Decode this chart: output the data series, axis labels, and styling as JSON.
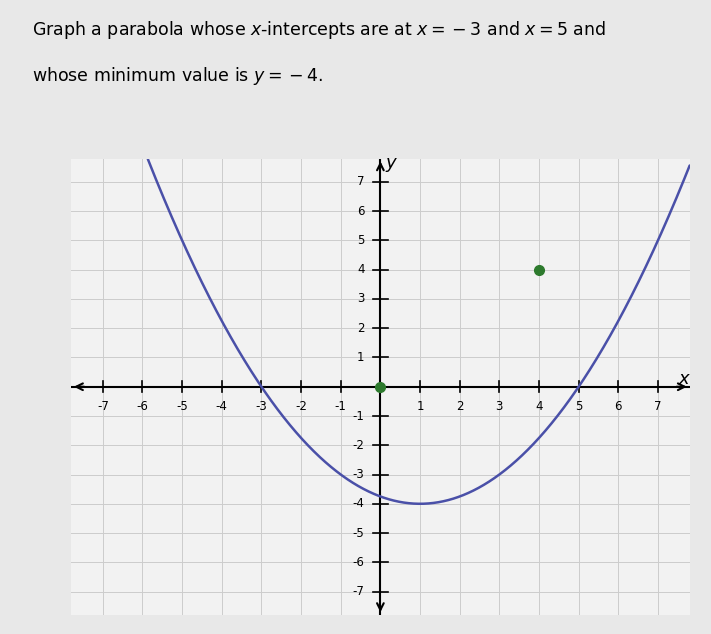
{
  "x_intercept_1": -3,
  "x_intercept_2": 5,
  "vertex_x": 1,
  "vertex_y": -4,
  "xlim": [
    -7.8,
    7.8
  ],
  "ylim": [
    -7.8,
    7.8
  ],
  "xticks": [
    -7,
    -6,
    -5,
    -4,
    -3,
    -2,
    -1,
    1,
    2,
    3,
    4,
    5,
    6,
    7
  ],
  "yticks": [
    -7,
    -6,
    -5,
    -4,
    -3,
    -2,
    -1,
    1,
    2,
    3,
    4,
    5,
    6,
    7
  ],
  "curve_color": "#4a50a8",
  "curve_linewidth": 1.8,
  "highlight_points": [
    [
      0,
      0
    ],
    [
      4,
      4
    ]
  ],
  "highlight_color": "#2d7a2d",
  "highlight_marker_size": 7,
  "grid_color": "#cccccc",
  "grid_linewidth": 0.7,
  "background_color": "#e8e8e8",
  "plot_bg_color": "#f2f2f2",
  "axis_label_x": "x",
  "axis_label_y": "y",
  "fig_width": 7.11,
  "fig_height": 6.34,
  "dpi": 100,
  "title_line1": "Graph a parabola whose ",
  "title_line2": "whose minimum value is ",
  "x_label_neg3": "x=-3",
  "x_label_5": "x=5",
  "y_label_neg4": "y=-4"
}
